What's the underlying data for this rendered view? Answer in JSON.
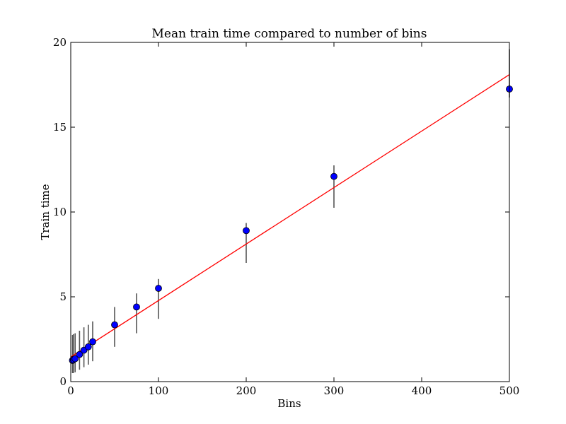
{
  "chart_data": {
    "type": "scatter",
    "title": "Mean train time compared to number of bins",
    "xlabel": "Bins",
    "ylabel": "Train time",
    "xlim": [
      0,
      500
    ],
    "ylim": [
      0,
      20
    ],
    "x_ticks": [
      0,
      100,
      200,
      300,
      400,
      500
    ],
    "y_ticks": [
      0,
      5,
      10,
      15,
      20
    ],
    "grid": false,
    "colors": {
      "points": "#0000ff",
      "fit_line": "#ff0000",
      "error_bars": "#555555",
      "axes": "#000000"
    },
    "points": [
      {
        "x": 2,
        "y": 1.25,
        "err_low": 0.5,
        "err_high": 2.75
      },
      {
        "x": 3,
        "y": 1.3,
        "err_low": 0.5,
        "err_high": 2.8
      },
      {
        "x": 5,
        "y": 1.35,
        "err_low": 0.55,
        "err_high": 2.85
      },
      {
        "x": 10,
        "y": 1.6,
        "err_low": 0.7,
        "err_high": 3.0
      },
      {
        "x": 15,
        "y": 1.85,
        "err_low": 0.85,
        "err_high": 3.2
      },
      {
        "x": 20,
        "y": 2.05,
        "err_low": 1.0,
        "err_high": 3.35
      },
      {
        "x": 25,
        "y": 2.35,
        "err_low": 1.2,
        "err_high": 3.55
      },
      {
        "x": 50,
        "y": 3.35,
        "err_low": 2.05,
        "err_high": 4.4
      },
      {
        "x": 75,
        "y": 4.4,
        "err_low": 2.85,
        "err_high": 5.2
      },
      {
        "x": 100,
        "y": 5.5,
        "err_low": 3.7,
        "err_high": 6.05
      },
      {
        "x": 200,
        "y": 8.9,
        "err_low": 7.0,
        "err_high": 9.35
      },
      {
        "x": 300,
        "y": 12.1,
        "err_low": 10.25,
        "err_high": 12.75
      },
      {
        "x": 500,
        "y": 17.25,
        "err_low": 16.75,
        "err_high": 19.6
      }
    ],
    "fit_line": {
      "x": [
        0,
        500
      ],
      "y": [
        1.45,
        18.1
      ]
    }
  }
}
